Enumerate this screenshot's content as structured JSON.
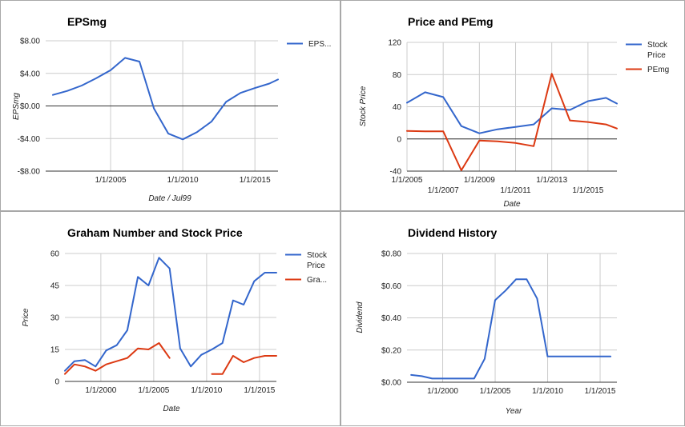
{
  "colors": {
    "blue": "#3366cc",
    "red": "#dc3912",
    "grid": "#cccccc",
    "zero": "#333333"
  },
  "chart_data": [
    {
      "type": "line",
      "title": "EPSmg",
      "xlabel": "Date / Jul99",
      "ylabel": "EPSmg",
      "x_ticks": [
        "1/1/2005",
        "1/1/2010",
        "1/1/2015"
      ],
      "y_ticks": [
        "$8.00",
        "$4.00",
        "$0.00",
        "-$4.00",
        "-$8.00"
      ],
      "ylim": [
        -8,
        8
      ],
      "legend": "right",
      "series": [
        {
          "name": "EPS...",
          "color": "#3366cc",
          "x": [
            2001,
            2002,
            2003,
            2004,
            2005,
            2006,
            2007,
            2008,
            2009,
            2010,
            2011,
            2012,
            2013,
            2014,
            2015,
            2016,
            2016.6
          ],
          "y": [
            1.35,
            1.85,
            2.5,
            3.4,
            4.4,
            5.9,
            5.45,
            -0.3,
            -3.4,
            -4.1,
            -3.2,
            -1.9,
            0.5,
            1.6,
            2.2,
            2.75,
            3.25
          ]
        }
      ]
    },
    {
      "type": "line",
      "title": "Price and PEmg",
      "xlabel": "Date",
      "ylabel": "Stock Price",
      "x_ticks": [
        "1/1/2005",
        "1/1/2007",
        "1/1/2009",
        "1/1/2011",
        "1/1/2013",
        "1/1/2015"
      ],
      "y_ticks": [
        "120",
        "80",
        "40",
        "0",
        "-40"
      ],
      "ylim": [
        -40,
        120
      ],
      "legend": "right",
      "series": [
        {
          "name": "Stock Price",
          "color": "#3366cc",
          "x": [
            2005,
            2006,
            2007,
            2008,
            2009,
            2010,
            2011,
            2012,
            2013,
            2014,
            2015,
            2016,
            2016.6
          ],
          "y": [
            45,
            58,
            52,
            16,
            7,
            12,
            15,
            18,
            38,
            36,
            47,
            51,
            44
          ]
        },
        {
          "name": "PEmg",
          "color": "#dc3912",
          "x": [
            2005,
            2006,
            2007,
            2008,
            2009,
            2010,
            2011,
            2012,
            2013,
            2014,
            2015,
            2016,
            2016.6
          ],
          "y": [
            10,
            9.5,
            9.5,
            -39,
            -2,
            -3,
            -5,
            -9,
            81,
            23,
            21,
            18,
            13
          ]
        }
      ]
    },
    {
      "type": "line",
      "title": "Graham Number and Stock Price",
      "xlabel": "Date",
      "ylabel": "Price",
      "x_ticks": [
        "1/1/2000",
        "1/1/2005",
        "1/1/2010",
        "1/1/2015"
      ],
      "y_ticks": [
        "60",
        "45",
        "30",
        "15",
        "0"
      ],
      "ylim": [
        0,
        60
      ],
      "legend": "right",
      "series": [
        {
          "name": "Stock Price",
          "color": "#3366cc",
          "x": [
            1996.6,
            1997.5,
            1998.5,
            1999.5,
            2000.5,
            2001.5,
            2002.5,
            2003.5,
            2004.5,
            2005.5,
            2006.5,
            2007.5,
            2008.5,
            2009.5,
            2010.5,
            2011.5,
            2012.5,
            2013.5,
            2014.5,
            2015.5,
            2016.6
          ],
          "y": [
            5,
            9.5,
            10,
            7,
            14.5,
            17,
            24,
            49,
            45,
            58,
            53,
            15.5,
            7,
            12.5,
            15,
            18,
            38,
            36,
            47,
            51,
            51
          ]
        },
        {
          "name": "Gra...",
          "color": "#dc3912",
          "segments": [
            {
              "x": [
                1996.6,
                1997.5,
                1998.5,
                1999.5,
                2000.5,
                2001.5,
                2002.5,
                2003.5,
                2004.5,
                2005.5,
                2006.5
              ],
              "y": [
                3.5,
                8,
                7,
                5,
                8,
                9.5,
                11,
                15.5,
                15,
                18,
                11
              ]
            },
            {
              "x": [
                2010.5,
                2011.5,
                2012.5,
                2013.5,
                2014.5,
                2015.5,
                2016.6
              ],
              "y": [
                3.5,
                3.5,
                12,
                9,
                11,
                12,
                12
              ]
            }
          ]
        }
      ]
    },
    {
      "type": "line",
      "title": "Dividend History",
      "xlabel": "Year",
      "ylabel": "Dividend",
      "x_ticks": [
        "1/1/2000",
        "1/1/2005",
        "1/1/2010",
        "1/1/2015"
      ],
      "y_ticks": [
        "$0.80",
        "$0.60",
        "$0.40",
        "$0.20",
        "$0.00"
      ],
      "ylim": [
        0,
        0.8
      ],
      "legend": "none",
      "series": [
        {
          "name": "Dividend",
          "color": "#3366cc",
          "x": [
            1997,
            1998,
            1999,
            2000,
            2001,
            2002,
            2003,
            2004,
            2005,
            2006,
            2007,
            2008,
            2009,
            2010,
            2011,
            2012,
            2013,
            2014,
            2015,
            2016
          ],
          "y": [
            0.045,
            0.038,
            0.023,
            0.023,
            0.023,
            0.023,
            0.023,
            0.145,
            0.51,
            0.57,
            0.64,
            0.64,
            0.52,
            0.16,
            0.16,
            0.16,
            0.16,
            0.16,
            0.16,
            0.16
          ]
        }
      ]
    }
  ]
}
